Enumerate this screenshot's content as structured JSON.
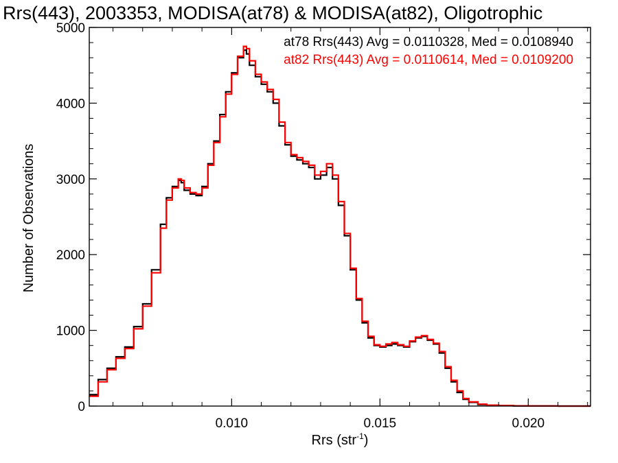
{
  "chart_data": {
    "type": "line",
    "title": "Rrs(443), 2003353, MODISA(at78) & MODISA(at82), Oligotrophic",
    "xlabel": "Rrs (str",
    "xlabel_sup": "-1",
    "xlabel_end": ")",
    "ylabel": "Number of Observations",
    "xlim": [
      0.0052,
      0.0221
    ],
    "ylim": [
      0,
      5000
    ],
    "xticks": [
      {
        "value": 0.01,
        "label": "0.010"
      },
      {
        "value": 0.015,
        "label": "0.015"
      },
      {
        "value": 0.02,
        "label": "0.020"
      }
    ],
    "yticks": [
      {
        "value": 0,
        "label": "0"
      },
      {
        "value": 1000,
        "label": "1000"
      },
      {
        "value": 2000,
        "label": "2000"
      },
      {
        "value": 3000,
        "label": "3000"
      },
      {
        "value": 4000,
        "label": "4000"
      },
      {
        "value": 5000,
        "label": "5000"
      }
    ],
    "legend": [
      {
        "text": "at78 Rrs(443) Avg = 0.0110328, Med = 0.0108940",
        "color": "#000000"
      },
      {
        "text": "at82 Rrs(443) Avg = 0.0110614, Med = 0.0109200",
        "color": "#ff0000"
      }
    ],
    "series": [
      {
        "name": "at78",
        "color": "#000000",
        "x": [
          0.0052,
          0.0055,
          0.0058,
          0.0061,
          0.0064,
          0.0067,
          0.007,
          0.0073,
          0.0076,
          0.0078,
          0.008,
          0.0082,
          0.0083,
          0.0084,
          0.0086,
          0.0088,
          0.009,
          0.0092,
          0.0094,
          0.0096,
          0.0098,
          0.01,
          0.0102,
          0.0104,
          0.0105,
          0.0106,
          0.0108,
          0.011,
          0.0112,
          0.0114,
          0.0116,
          0.0118,
          0.012,
          0.0122,
          0.0124,
          0.0126,
          0.0128,
          0.013,
          0.0132,
          0.0134,
          0.0136,
          0.0138,
          0.014,
          0.0142,
          0.0144,
          0.0146,
          0.0148,
          0.015,
          0.0152,
          0.0154,
          0.0156,
          0.0158,
          0.016,
          0.0162,
          0.0164,
          0.0166,
          0.0168,
          0.017,
          0.0172,
          0.0174,
          0.0176,
          0.0178,
          0.018,
          0.0183,
          0.0186,
          0.019,
          0.0195,
          0.02,
          0.021,
          0.0221
        ],
        "y": [
          150,
          350,
          500,
          650,
          780,
          1050,
          1350,
          1800,
          2400,
          2750,
          2900,
          2980,
          2950,
          2850,
          2800,
          2780,
          2900,
          3200,
          3500,
          3850,
          4150,
          4400,
          4600,
          4700,
          4650,
          4500,
          4350,
          4250,
          4150,
          4000,
          3700,
          3450,
          3300,
          3250,
          3200,
          3150,
          3000,
          3050,
          3150,
          3000,
          2650,
          2250,
          1800,
          1400,
          1100,
          900,
          800,
          780,
          800,
          820,
          800,
          780,
          850,
          900,
          920,
          870,
          820,
          700,
          500,
          320,
          180,
          90,
          50,
          20,
          10,
          5,
          2,
          1,
          0,
          0
        ]
      },
      {
        "name": "at82",
        "color": "#ff0000",
        "x": [
          0.0052,
          0.0055,
          0.0058,
          0.0061,
          0.0064,
          0.0067,
          0.007,
          0.0073,
          0.0076,
          0.0078,
          0.008,
          0.0082,
          0.0083,
          0.0084,
          0.0086,
          0.0088,
          0.009,
          0.0092,
          0.0094,
          0.0096,
          0.0098,
          0.01,
          0.0102,
          0.0104,
          0.0105,
          0.0106,
          0.0108,
          0.011,
          0.0112,
          0.0114,
          0.0116,
          0.0118,
          0.012,
          0.0122,
          0.0124,
          0.0126,
          0.0128,
          0.013,
          0.0132,
          0.0134,
          0.0136,
          0.0138,
          0.014,
          0.0142,
          0.0144,
          0.0146,
          0.0148,
          0.015,
          0.0152,
          0.0154,
          0.0156,
          0.0158,
          0.016,
          0.0162,
          0.0164,
          0.0166,
          0.0168,
          0.017,
          0.0172,
          0.0174,
          0.0176,
          0.0178,
          0.018,
          0.0183,
          0.0186,
          0.019,
          0.0195,
          0.02,
          0.021,
          0.0221
        ],
        "y": [
          130,
          320,
          480,
          630,
          760,
          1020,
          1320,
          1760,
          2350,
          2720,
          2880,
          3000,
          2980,
          2880,
          2820,
          2800,
          2880,
          3180,
          3480,
          3820,
          4120,
          4380,
          4620,
          4750,
          4720,
          4560,
          4380,
          4280,
          4180,
          4050,
          3750,
          3480,
          3320,
          3280,
          3230,
          3180,
          3050,
          3100,
          3200,
          3050,
          2700,
          2280,
          1820,
          1420,
          1120,
          920,
          810,
          790,
          820,
          840,
          810,
          790,
          860,
          910,
          930,
          880,
          830,
          720,
          520,
          340,
          200,
          100,
          55,
          25,
          12,
          6,
          3,
          1,
          0,
          0
        ]
      }
    ]
  }
}
